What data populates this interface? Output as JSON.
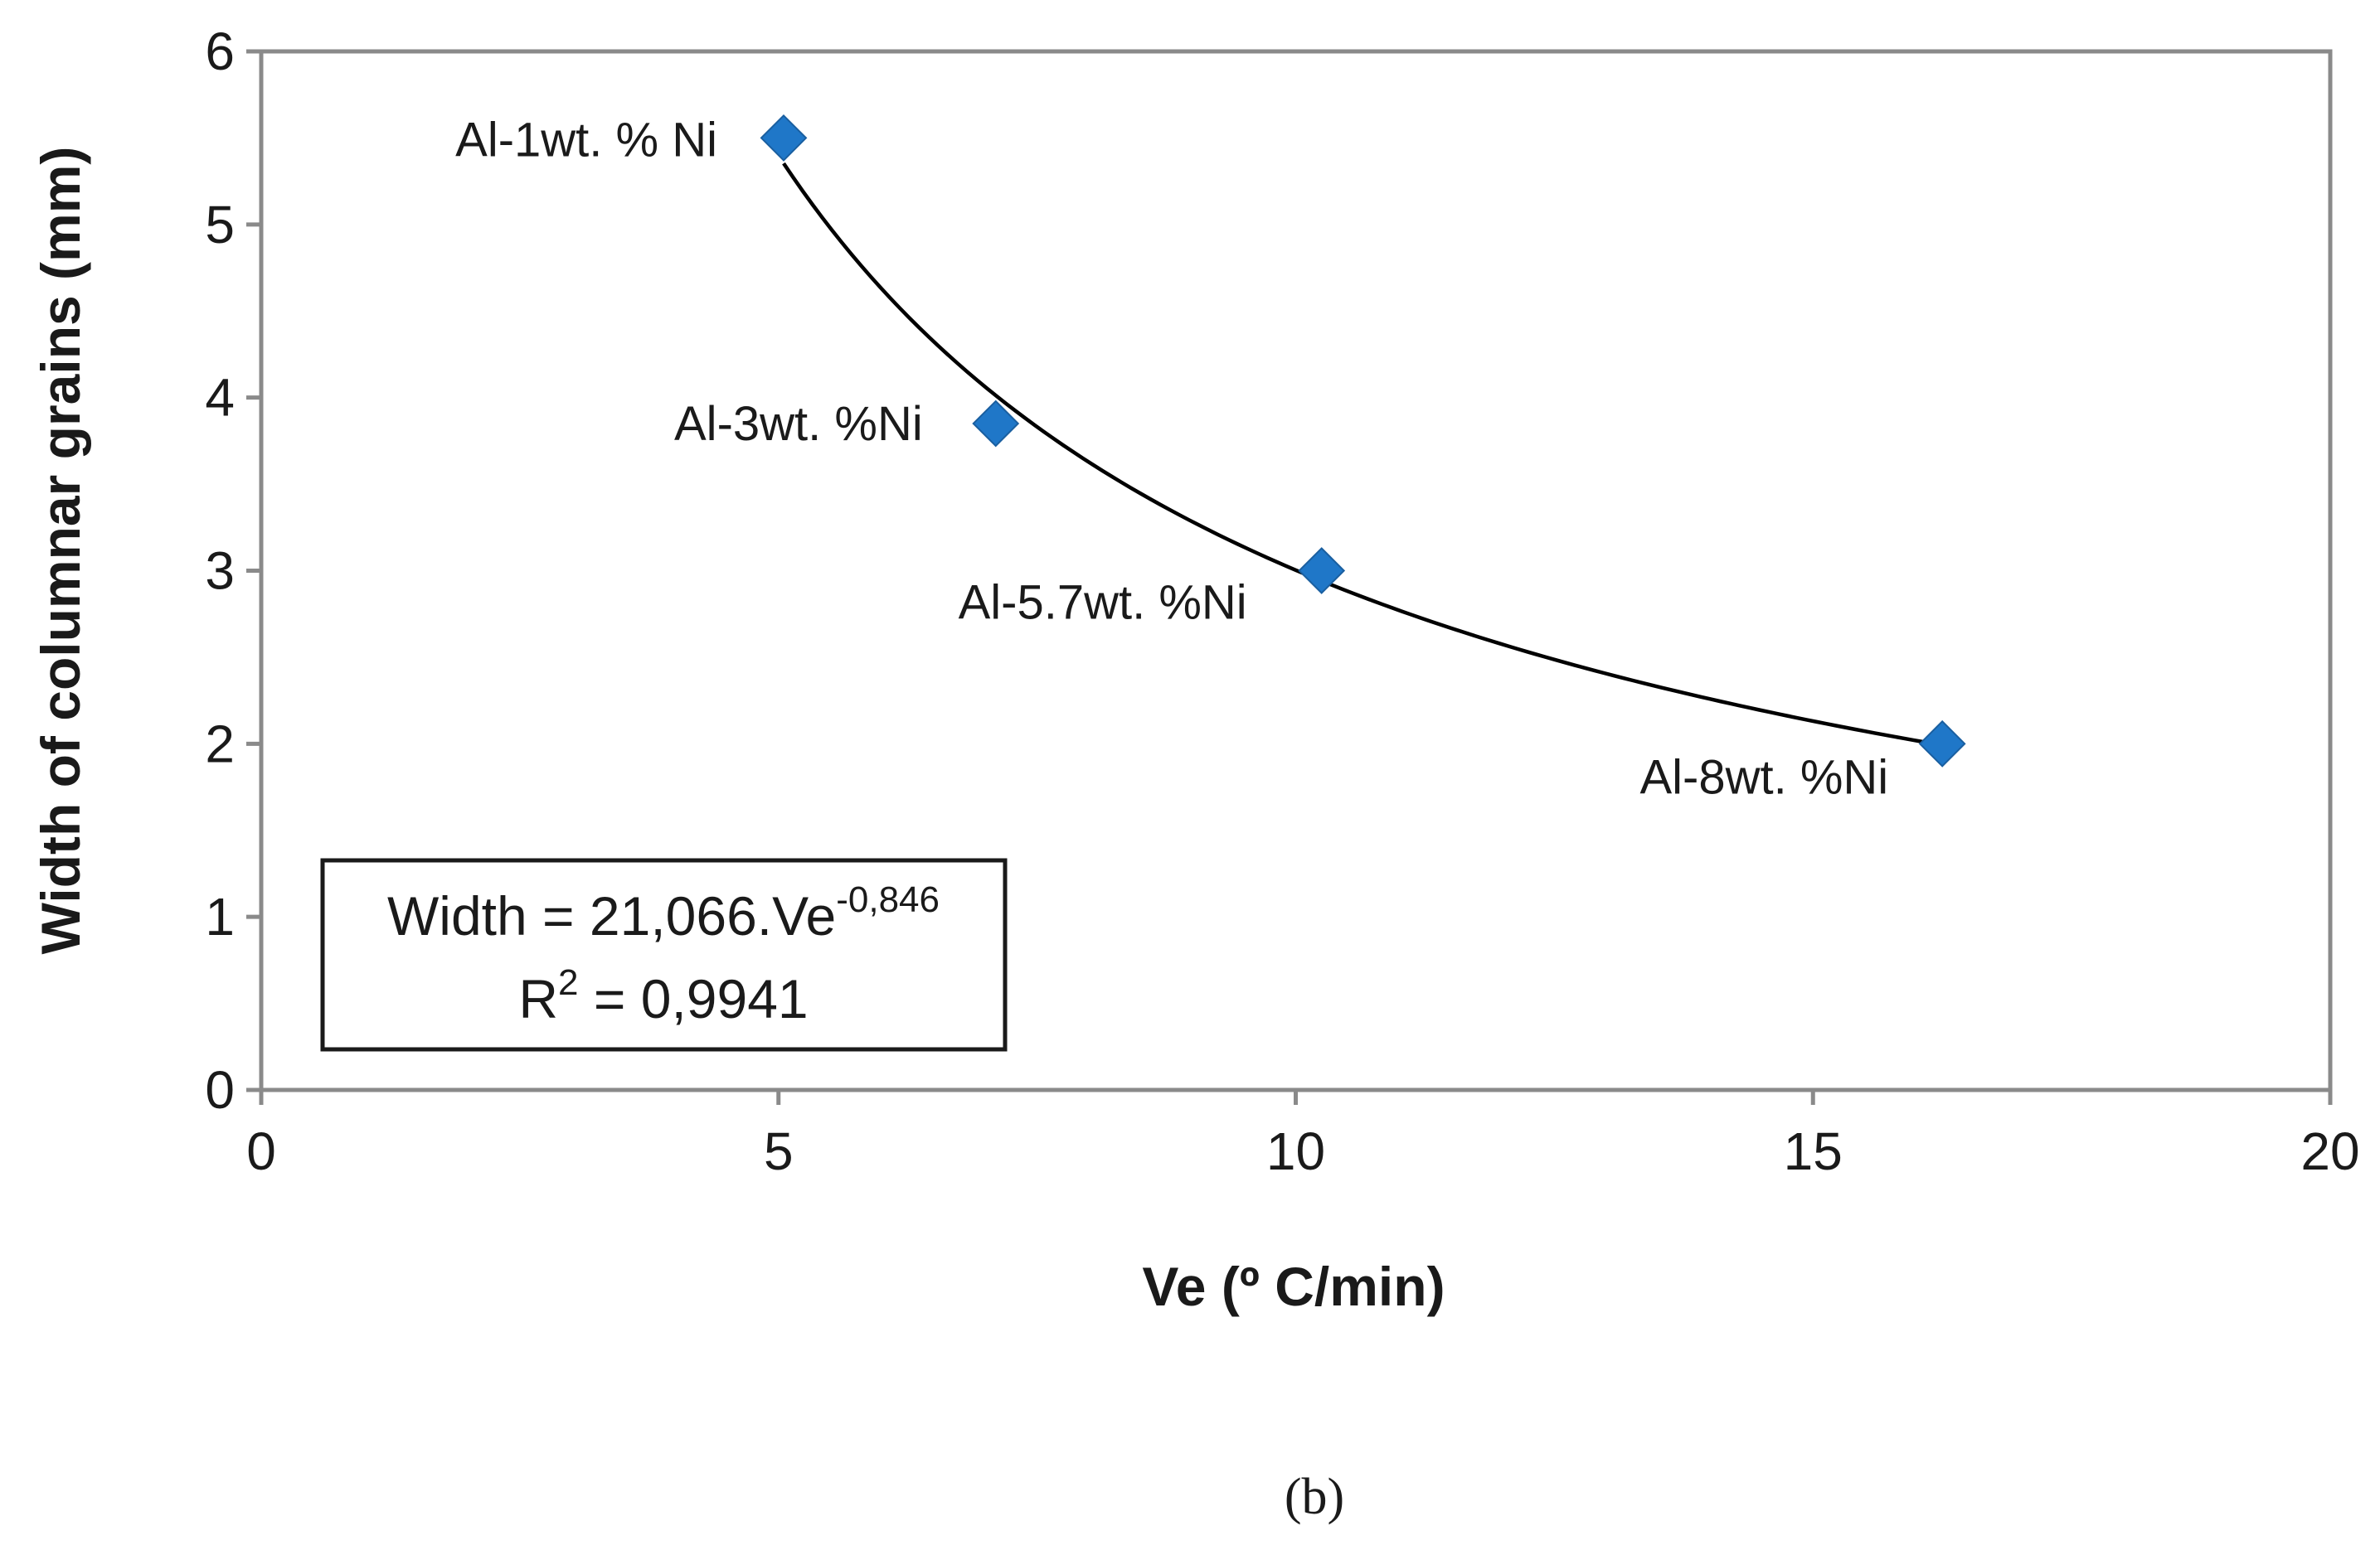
{
  "chart_data": {
    "type": "scatter",
    "xlabel": "Ve (º C/min)",
    "ylabel": "Width of columnar grains (mm)",
    "xlim": [
      0,
      20
    ],
    "ylim": [
      0,
      6
    ],
    "x_ticks": [
      0,
      5,
      10,
      15,
      20
    ],
    "y_ticks": [
      0,
      1,
      2,
      3,
      4,
      5,
      6
    ],
    "grid": false,
    "series": [
      {
        "marker": "diamond",
        "color": "#1f77c8",
        "points": [
          {
            "x": 5.05,
            "y": 5.5,
            "label": "Al-1wt. % Ni"
          },
          {
            "x": 7.1,
            "y": 3.85,
            "label": "Al-3wt. %Ni"
          },
          {
            "x": 10.25,
            "y": 3.0,
            "label": "Al-5.7wt. %Ni"
          },
          {
            "x": 16.25,
            "y": 2.0,
            "label": "Al-8wt. %Ni"
          }
        ]
      }
    ],
    "trendline": {
      "type": "power",
      "coefficient": 21.066,
      "exponent": -0.846,
      "x_range": [
        5.05,
        16.25
      ],
      "color": "#000000"
    },
    "equation_box": {
      "line1_main": "Width = 21,066.Ve",
      "line1_sup": "-0,846",
      "line2_main": "R",
      "line2_sup": "2",
      "line2_rest": " = 0,9941"
    },
    "caption": "(b)"
  }
}
